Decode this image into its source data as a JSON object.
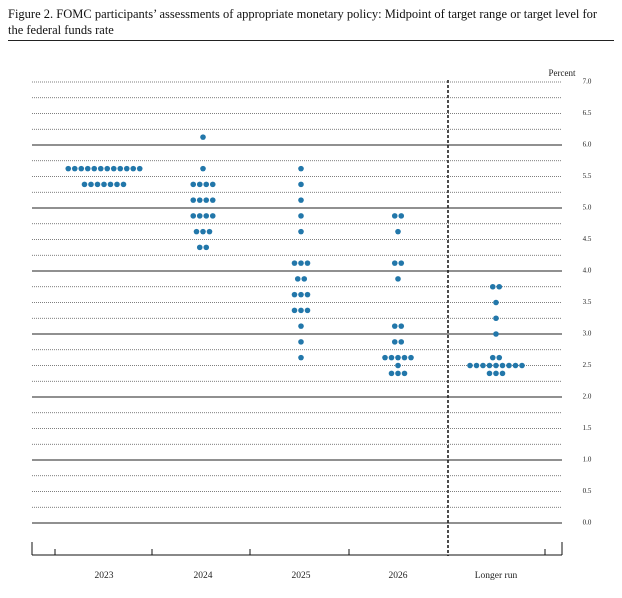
{
  "chart_data": {
    "type": "dot",
    "title": "Figure 2. FOMC participants’ assessments of appropriate monetary policy: Midpoint of target range or target level for the federal funds rate",
    "y_label": "Percent",
    "categories": [
      "2023",
      "2024",
      "2025",
      "2026",
      "Longer run"
    ],
    "color": "#2277aa",
    "values": [
      [
        5.625,
        5.625,
        5.625,
        5.625,
        5.625,
        5.625,
        5.625,
        5.625,
        5.625,
        5.625,
        5.625,
        5.625,
        5.375,
        5.375,
        5.375,
        5.375,
        5.375,
        5.375,
        5.375
      ],
      [
        6.125,
        5.625,
        5.375,
        5.375,
        5.375,
        5.375,
        5.125,
        5.125,
        5.125,
        5.125,
        4.875,
        4.875,
        4.875,
        4.875,
        4.625,
        4.625,
        4.625,
        4.375,
        4.375
      ],
      [
        5.625,
        5.375,
        5.125,
        4.875,
        4.625,
        4.125,
        4.125,
        4.125,
        3.875,
        3.875,
        3.625,
        3.625,
        3.625,
        3.375,
        3.375,
        3.375,
        3.125,
        2.875,
        2.625
      ],
      [
        4.875,
        4.875,
        4.625,
        4.125,
        4.125,
        3.875,
        3.125,
        3.125,
        2.875,
        2.875,
        2.625,
        2.625,
        2.625,
        2.625,
        2.625,
        2.5,
        2.375,
        2.375,
        2.375
      ],
      [
        3.75,
        3.75,
        3.5,
        3.25,
        3.0,
        2.625,
        2.625,
        2.5,
        2.5,
        2.5,
        2.5,
        2.5,
        2.5,
        2.5,
        2.5,
        2.5,
        2.375,
        2.375,
        2.375
      ]
    ],
    "ylim": [
      0,
      7
    ],
    "yticks": [
      {
        "value": 0,
        "label": "0.0"
      },
      0.5,
      {
        "value": 1,
        "label": "1.0"
      },
      1.5,
      {
        "value": 2,
        "label": "2.0"
      },
      2.5,
      {
        "value": 3,
        "label": "3.0"
      },
      3.5,
      {
        "value": 4,
        "label": "4.0"
      },
      4.5,
      {
        "value": 5,
        "label": "5.0"
      },
      5.5,
      {
        "value": 6,
        "label": "6.0"
      },
      6.5,
      {
        "value": 7,
        "label": "7.0"
      }
    ],
    "grid": true
  }
}
